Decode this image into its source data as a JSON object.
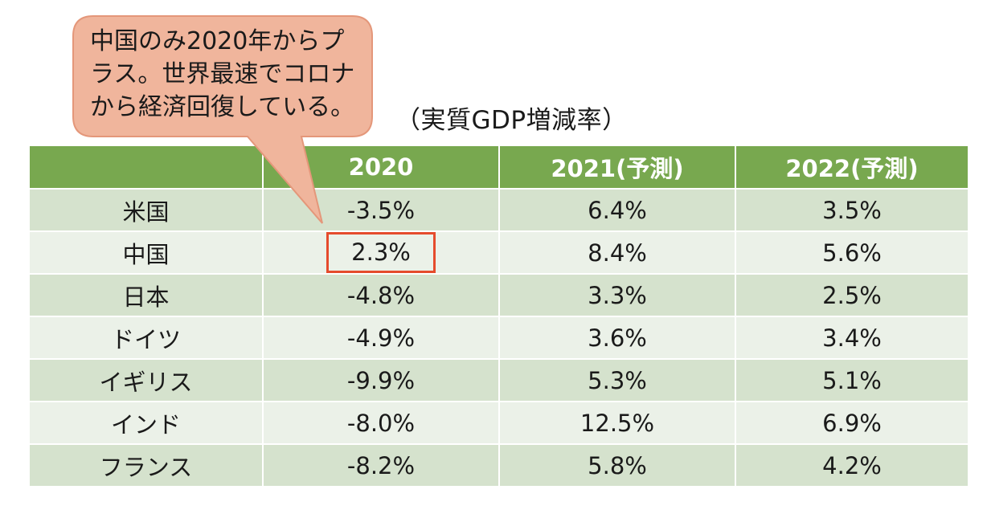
{
  "caption": "（実質GDP増減率）",
  "callout": {
    "lines": [
      "中国のみ2020年からプ",
      "ラス。世界最速でコロナ",
      "から経済回復している。"
    ]
  },
  "table": {
    "headers": [
      "",
      "2020",
      "2021(予測)",
      "2022(予測)"
    ],
    "rows": [
      {
        "country": "米国",
        "y2020": "-3.5%",
        "y2021": "6.4%",
        "y2022": "3.5%"
      },
      {
        "country": "中国",
        "y2020": "2.3%",
        "y2021": "8.4%",
        "y2022": "5.6%"
      },
      {
        "country": "日本",
        "y2020": "-4.8%",
        "y2021": "3.3%",
        "y2022": "2.5%"
      },
      {
        "country": "ドイツ",
        "y2020": "-4.9%",
        "y2021": "3.6%",
        "y2022": "3.4%"
      },
      {
        "country": "イギリス",
        "y2020": "-9.9%",
        "y2021": "5.3%",
        "y2022": "5.1%"
      },
      {
        "country": "インド",
        "y2020": "-8.0%",
        "y2021": "12.5%",
        "y2022": "6.9%"
      },
      {
        "country": "フランス",
        "y2020": "-8.2%",
        "y2021": "5.8%",
        "y2022": "4.2%"
      }
    ],
    "highlight_row": 1
  },
  "colors": {
    "header": "#78a84f",
    "row_dark": "#d5e2cd",
    "row_light": "#ebf1e8",
    "highlight_border": "#e54b2c",
    "callout_fill": "#f0b59c",
    "callout_stroke": "#e4977a"
  }
}
